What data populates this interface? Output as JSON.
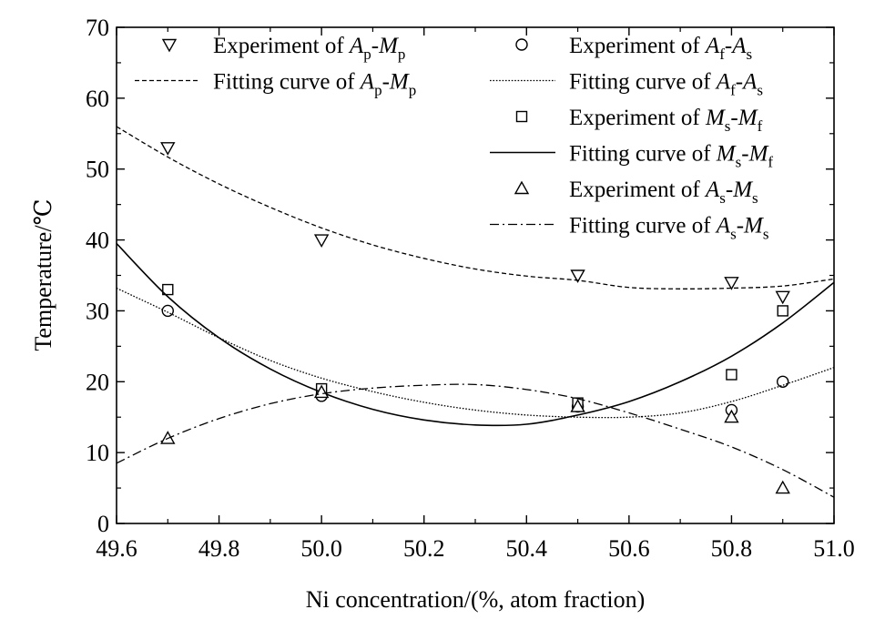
{
  "chart_data": {
    "type": "scatter",
    "xlabel": "Ni concentration/(%, atom fraction)",
    "ylabel": "Temperature/℃",
    "xlim": [
      49.6,
      51.0
    ],
    "ylim": [
      0,
      70
    ],
    "x_ticks": [
      "49.6",
      "49.8",
      "50.0",
      "50.2",
      "50.4",
      "50.6",
      "50.8",
      "51.0"
    ],
    "y_ticks": [
      "0",
      "10",
      "20",
      "30",
      "40",
      "50",
      "60",
      "70"
    ],
    "legend_placement": "top",
    "series": [
      {
        "key": "ap_mp_exp",
        "kind": "points",
        "marker": "triangle-down",
        "x": [
          49.7,
          50.0,
          50.5,
          50.8,
          50.9
        ],
        "y": [
          53,
          40,
          35,
          34,
          32
        ]
      },
      {
        "key": "ap_mp_fit",
        "kind": "curve",
        "dash": "short-dash",
        "x": [
          49.6,
          49.7,
          49.8,
          49.9,
          50.0,
          50.1,
          50.2,
          50.3,
          50.4,
          50.5,
          50.6,
          50.7,
          50.8,
          50.9,
          51.0
        ],
        "y": [
          56.0,
          51.7,
          47.9,
          44.6,
          41.7,
          39.3,
          37.4,
          35.9,
          34.9,
          34.3,
          33.3,
          33.1,
          33.2,
          33.5,
          34.5
        ]
      },
      {
        "key": "af_as_exp",
        "kind": "points",
        "marker": "circle",
        "x": [
          49.7,
          50.0,
          50.5,
          50.8,
          50.9
        ],
        "y": [
          30,
          18,
          16.5,
          16,
          20
        ]
      },
      {
        "key": "af_as_fit",
        "kind": "curve",
        "dash": "dotted",
        "x": [
          49.6,
          49.7,
          49.8,
          49.9,
          50.0,
          50.1,
          50.2,
          50.3,
          50.4,
          50.5,
          50.6,
          50.7,
          50.8,
          50.9,
          51.0
        ],
        "y": [
          33.2,
          29.8,
          26.2,
          23.0,
          20.5,
          18.6,
          17.1,
          16.0,
          15.3,
          15.0,
          15.0,
          15.6,
          17.2,
          19.5,
          22.0
        ]
      },
      {
        "key": "ms_mf_exp",
        "kind": "points",
        "marker": "square",
        "x": [
          49.7,
          50.0,
          50.5,
          50.8,
          50.9
        ],
        "y": [
          33,
          19,
          17,
          21,
          30
        ]
      },
      {
        "key": "ms_mf_fit",
        "kind": "curve",
        "dash": "solid",
        "x": [
          49.6,
          49.7,
          49.8,
          49.9,
          50.0,
          50.1,
          50.2,
          50.3,
          50.4,
          50.5,
          50.6,
          50.7,
          50.8,
          50.9,
          51.0
        ],
        "y": [
          39.5,
          32.0,
          26.2,
          21.8,
          18.5,
          16.1,
          14.6,
          13.9,
          14.0,
          15.3,
          17.2,
          20.0,
          23.6,
          28.3,
          34.0
        ]
      },
      {
        "key": "as_ms_exp",
        "kind": "points",
        "marker": "triangle-up",
        "x": [
          49.7,
          50.0,
          50.5,
          50.8,
          50.9
        ],
        "y": [
          12,
          18.5,
          16.5,
          15,
          5
        ]
      },
      {
        "key": "as_ms_fit",
        "kind": "curve",
        "dash": "dash-dot",
        "x": [
          49.6,
          49.7,
          49.8,
          49.9,
          50.0,
          50.1,
          50.2,
          50.3,
          50.4,
          50.5,
          50.6,
          50.7,
          50.8,
          50.9,
          51.0
        ],
        "y": [
          8.5,
          12.0,
          14.8,
          16.9,
          18.3,
          19.1,
          19.5,
          19.6,
          18.9,
          17.6,
          15.6,
          13.3,
          10.8,
          7.6,
          3.7
        ]
      }
    ]
  },
  "legend": [
    {
      "series": "ap_mp_exp",
      "column": 0,
      "row": 0,
      "prefix": "Experiment of ",
      "v1": "A",
      "s1": "p",
      "v2": "M",
      "s2": "p"
    },
    {
      "series": "ap_mp_fit",
      "column": 0,
      "row": 1,
      "prefix": "Fitting curve of ",
      "v1": "A",
      "s1": "p",
      "v2": "M",
      "s2": "p"
    },
    {
      "series": "af_as_exp",
      "column": 1,
      "row": 0,
      "prefix": "Experiment of ",
      "v1": "A",
      "s1": "f",
      "v2": "A",
      "s2": "s"
    },
    {
      "series": "af_as_fit",
      "column": 1,
      "row": 1,
      "prefix": "Fitting curve of ",
      "v1": "A",
      "s1": "f",
      "v2": "A",
      "s2": "s"
    },
    {
      "series": "ms_mf_exp",
      "column": 1,
      "row": 2,
      "prefix": "Experiment of ",
      "v1": "M",
      "s1": "s",
      "v2": "M",
      "s2": "f"
    },
    {
      "series": "ms_mf_fit",
      "column": 1,
      "row": 3,
      "prefix": "Fitting curve of ",
      "v1": "M",
      "s1": "s",
      "v2": "M",
      "s2": "f"
    },
    {
      "series": "as_ms_exp",
      "column": 1,
      "row": 4,
      "prefix": "Experiment of ",
      "v1": "A",
      "s1": "s",
      "v2": "M",
      "s2": "s"
    },
    {
      "series": "as_ms_fit",
      "column": 1,
      "row": 5,
      "prefix": "Fitting curve of ",
      "v1": "A",
      "s1": "s",
      "v2": "M",
      "s2": "s"
    }
  ]
}
